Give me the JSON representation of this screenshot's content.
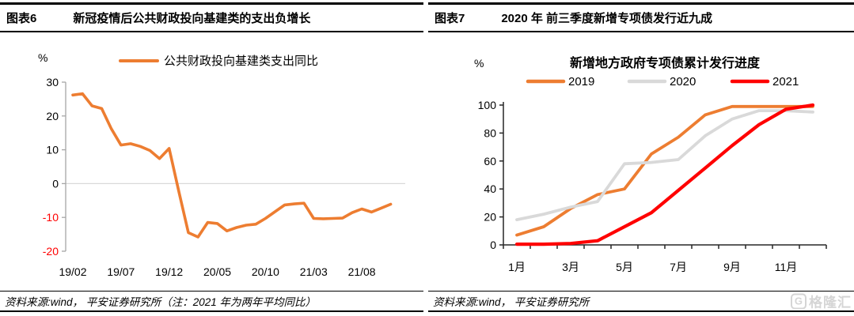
{
  "panels": [
    {
      "header": {
        "tag": "图表6",
        "title": "新冠疫情后公共财政投向基建类的支出负增长"
      },
      "footer": {
        "source": "资料来源:wind， 平安证券研究所（注：2021 年为两年平均同比）"
      }
    },
    {
      "header": {
        "tag": "图表7",
        "title": "2020 年 前三季度新增专项债发行近九成"
      },
      "footer": {
        "source": "资料来源:wind， 平安证券研究所"
      }
    }
  ],
  "watermark": {
    "icon": "G",
    "text": "格隆汇"
  },
  "chart_data": [
    {
      "type": "line",
      "title": "",
      "unit_label": "%",
      "ylabel": "%",
      "ylim": [
        -20,
        30
      ],
      "yticks": [
        30,
        20,
        10,
        0,
        -10,
        -20
      ],
      "negative_tick_color": "#ff0000",
      "grid": "zero-line-only",
      "legend_position": "top",
      "x": [
        "19/02",
        "19/03",
        "19/04",
        "19/05",
        "19/06",
        "19/07",
        "19/08",
        "19/09",
        "19/10",
        "19/11",
        "19/12",
        "20/01",
        "20/02",
        "20/03",
        "20/04",
        "20/05",
        "20/06",
        "20/07",
        "20/08",
        "20/09",
        "20/10",
        "20/11",
        "20/12",
        "21/01",
        "21/02",
        "21/03",
        "21/04",
        "21/05",
        "21/06",
        "21/07",
        "21/08",
        "21/09",
        "21/10",
        "21/11"
      ],
      "x_tick_labels": [
        "19/02",
        "19/07",
        "19/12",
        "20/05",
        "20/10",
        "21/03",
        "21/08"
      ],
      "series": [
        {
          "name": "公共财政投向基建类支出同比",
          "color": "#ED7D31",
          "values": [
            26.2,
            26.6,
            23.0,
            22.2,
            16.2,
            11.4,
            11.8,
            11.0,
            9.8,
            7.4,
            10.4,
            -2.3,
            -14.5,
            -15.8,
            -11.5,
            -11.8,
            -14.0,
            -13.0,
            -12.3,
            -12.0,
            -10.3,
            -8.3,
            -6.3,
            -6.0,
            -5.8,
            -10.3,
            -10.4,
            -10.3,
            -10.2,
            -8.6,
            -7.5,
            -8.4,
            -7.3,
            -6.1
          ]
        }
      ]
    },
    {
      "type": "line",
      "title": "新增地方政府专项债累计发行进度",
      "unit_label": "%",
      "ylim": [
        0,
        100
      ],
      "yticks": [
        0,
        20,
        40,
        60,
        80,
        100
      ],
      "grid": "off",
      "legend_position": "top",
      "x": [
        "1月",
        "2月",
        "3月",
        "4月",
        "5月",
        "6月",
        "7月",
        "8月",
        "9月",
        "10月",
        "11月",
        "12月"
      ],
      "x_tick_labels": [
        "1月",
        "3月",
        "5月",
        "7月",
        "9月",
        "11月"
      ],
      "series": [
        {
          "name": "2019",
          "color": "#ED7D31",
          "values": [
            7,
            13,
            26,
            36,
            40,
            65,
            77,
            93,
            99,
            99,
            99,
            99
          ]
        },
        {
          "name": "2020",
          "color": "#D9D9D9",
          "values": [
            18,
            22,
            27,
            31,
            58,
            59,
            61,
            78,
            90,
            96,
            96,
            95
          ]
        },
        {
          "name": "2021",
          "color": "#FF0000",
          "values": [
            0.5,
            0.5,
            1,
            3,
            13,
            23,
            39,
            55,
            71,
            86,
            97,
            100
          ]
        }
      ]
    }
  ]
}
